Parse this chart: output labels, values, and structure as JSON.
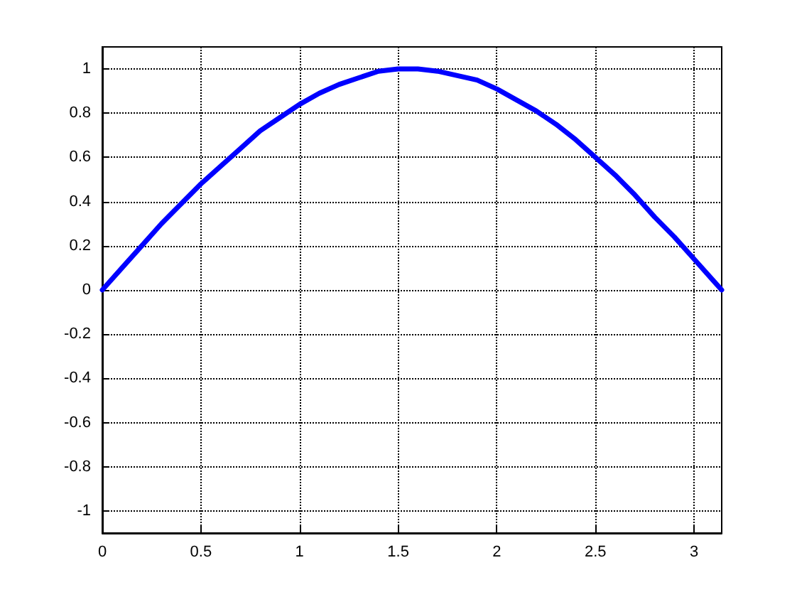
{
  "chart_data": {
    "type": "line",
    "x": [
      0,
      0.1,
      0.2,
      0.3,
      0.4,
      0.5,
      0.6,
      0.7,
      0.8,
      0.9,
      1.0,
      1.1,
      1.2,
      1.3,
      1.4,
      1.5,
      1.6,
      1.7,
      1.8,
      1.9,
      2.0,
      2.1,
      2.2,
      2.3,
      2.4,
      2.5,
      2.6,
      2.7,
      2.8,
      2.9,
      3.0,
      3.1,
      3.14
    ],
    "series": [
      {
        "color": "#0000ff",
        "values": [
          0,
          0.1,
          0.2,
          0.3,
          0.39,
          0.48,
          0.56,
          0.64,
          0.72,
          0.78,
          0.84,
          0.89,
          0.93,
          0.96,
          0.99,
          1.0,
          1.0,
          0.99,
          0.97,
          0.95,
          0.91,
          0.86,
          0.81,
          0.75,
          0.68,
          0.6,
          0.52,
          0.43,
          0.33,
          0.24,
          0.14,
          0.04,
          0
        ]
      }
    ],
    "xlim": [
      0,
      3.14
    ],
    "xticks": [
      0,
      0.5,
      1,
      1.5,
      2,
      2.5,
      3
    ],
    "ylim": [
      -1.1,
      1.1
    ],
    "yticks": [
      -1,
      -0.8,
      -0.6,
      -0.4,
      -0.2,
      0,
      0.2,
      0.4,
      0.6,
      0.8,
      1
    ],
    "grid": true,
    "marker": "none",
    "line_style": "solid"
  }
}
